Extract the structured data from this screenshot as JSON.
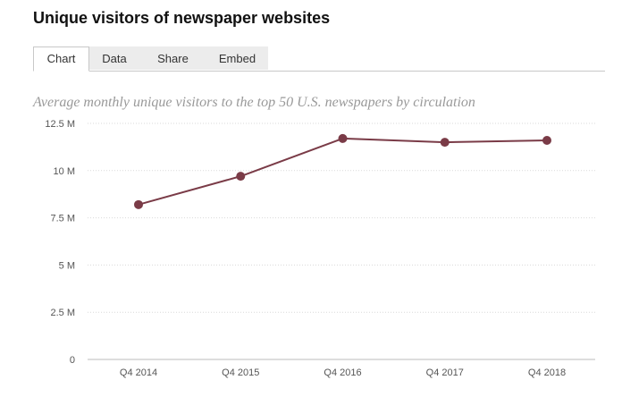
{
  "title": "Unique visitors of newspaper websites",
  "tabs": [
    {
      "label": "Chart",
      "active": true
    },
    {
      "label": "Data",
      "active": false
    },
    {
      "label": "Share",
      "active": false
    },
    {
      "label": "Embed",
      "active": false
    }
  ],
  "colors": {
    "series": "#7a3b47",
    "grid": "#d9d9d9"
  },
  "chart_data": {
    "type": "line",
    "title": "Average monthly unique visitors to the top 50 U.S. newspapers by circulation",
    "categories": [
      "Q4 2014",
      "Q4 2015",
      "Q4 2016",
      "Q4 2017",
      "Q4 2018"
    ],
    "series": [
      {
        "values": [
          8.2,
          9.7,
          11.7,
          11.5,
          11.6
        ]
      }
    ],
    "yticks": [
      0,
      2.5,
      5,
      7.5,
      10,
      12.5
    ],
    "ytick_labels": [
      "0",
      "2.5 M",
      "5 M",
      "7.5 M",
      "10 M",
      "12.5 M"
    ],
    "ylim": [
      0,
      12.5
    ],
    "grid": true,
    "xlabel": "",
    "ylabel": ""
  }
}
